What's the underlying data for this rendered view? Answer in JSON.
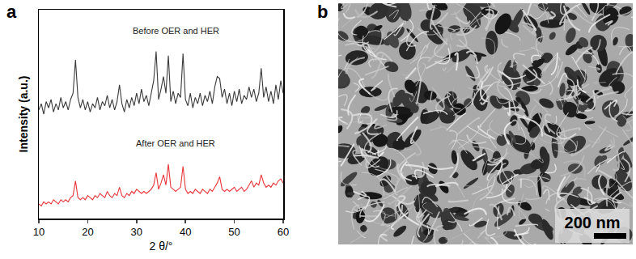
{
  "chart_data": {
    "type": "line",
    "panel": "a",
    "ylabel": "Intensity (a.u.)",
    "xlabel": "2 θ/°",
    "xlim": [
      10,
      60
    ],
    "xticks": [
      10,
      20,
      30,
      40,
      50,
      60
    ],
    "ylim": [
      0,
      100
    ],
    "tick_labels": "x",
    "grid": false,
    "x": [
      10,
      10.5,
      11,
      11.5,
      12,
      12.5,
      13,
      13.5,
      14,
      14.5,
      15,
      15.5,
      16,
      16.5,
      17,
      17.5,
      18,
      18.5,
      19,
      19.5,
      20,
      20.5,
      21,
      21.5,
      22,
      22.5,
      23,
      23.5,
      24,
      24.5,
      25,
      25.5,
      26,
      26.5,
      27,
      27.5,
      28,
      28.5,
      29,
      29.5,
      30,
      30.5,
      31,
      31.5,
      32,
      32.5,
      33,
      33.5,
      34,
      34.5,
      35,
      35.5,
      36,
      36.5,
      37,
      37.5,
      38,
      38.5,
      39,
      39.5,
      40,
      40.5,
      41,
      41.5,
      42,
      42.5,
      43,
      43.5,
      44,
      44.5,
      45,
      45.5,
      46,
      46.5,
      47,
      47.5,
      48,
      48.5,
      49,
      49.5,
      50,
      50.5,
      51,
      51.5,
      52,
      52.5,
      53,
      53.5,
      54,
      54.5,
      55,
      55.5,
      56,
      56.5,
      57,
      57.5,
      58,
      58.5,
      59,
      59.5,
      60
    ],
    "series": [
      {
        "name": "Before OER and HER",
        "color": "#3a3a3a",
        "values": [
          52,
          55,
          50,
          56,
          53,
          57,
          51,
          55,
          52,
          58,
          53,
          56,
          52,
          57,
          60,
          76,
          58,
          53,
          57,
          52,
          56,
          51,
          55,
          53,
          58,
          52,
          56,
          54,
          59,
          53,
          57,
          52,
          56,
          64,
          55,
          51,
          57,
          53,
          58,
          54,
          60,
          55,
          62,
          56,
          59,
          54,
          60,
          66,
          80,
          57,
          62,
          68,
          60,
          78,
          56,
          61,
          55,
          60,
          58,
          79,
          57,
          54,
          60,
          53,
          58,
          55,
          60,
          54,
          59,
          56,
          61,
          55,
          63,
          68,
          67,
          58,
          62,
          55,
          60,
          54,
          61,
          56,
          62,
          55,
          59,
          57,
          63,
          58,
          62,
          56,
          60,
          72,
          58,
          63,
          56,
          61,
          55,
          64,
          57,
          66,
          60
        ]
      },
      {
        "name": "After OER and HER",
        "color": "#e8363a",
        "values": [
          7,
          6,
          8,
          7,
          8,
          7,
          9,
          8,
          7,
          9,
          8,
          9,
          8,
          10,
          11,
          18,
          10,
          9,
          10,
          9,
          11,
          10,
          9,
          11,
          10,
          12,
          11,
          10,
          13,
          11,
          10,
          12,
          11,
          15,
          11,
          10,
          12,
          11,
          13,
          12,
          14,
          13,
          12,
          13,
          12,
          13,
          14,
          16,
          22,
          14,
          17,
          21,
          16,
          26,
          15,
          14,
          13,
          14,
          15,
          25,
          14,
          12,
          13,
          12,
          14,
          13,
          12,
          14,
          13,
          12,
          14,
          13,
          15,
          17,
          20,
          14,
          13,
          14,
          13,
          14,
          15,
          13,
          14,
          15,
          13,
          14,
          16,
          18,
          15,
          17,
          16,
          21,
          17,
          15,
          16,
          15,
          17,
          16,
          18,
          19,
          17
        ]
      }
    ],
    "annotations": [
      {
        "text": "Before OER and HER",
        "x": 38,
        "y": 90
      },
      {
        "text": "After OER and HER",
        "x": 38,
        "y": 36
      }
    ]
  },
  "image_panel": {
    "panel": "b",
    "scale_bar": "200 nm"
  }
}
